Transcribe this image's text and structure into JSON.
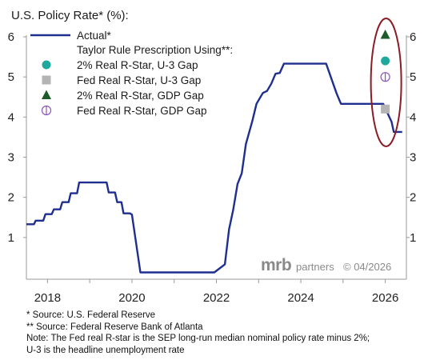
{
  "chart_data": {
    "type": "line",
    "title": "U.S. Policy Rate* (%):",
    "ylim": [
      0,
      6
    ],
    "xlim": [
      2017.5,
      2026.5
    ],
    "y_ticks": [
      "1",
      "2",
      "3",
      "4",
      "5",
      "6"
    ],
    "x_ticks": [
      "2018",
      "2020",
      "2022",
      "2024",
      "2026"
    ],
    "grid": false,
    "legend_position": "top-left",
    "series": [
      {
        "name": "Actual*",
        "color": "#1f2f8f",
        "x": [
          2017.5,
          2017.68,
          2017.72,
          2017.9,
          2017.95,
          2018.1,
          2018.15,
          2018.3,
          2018.35,
          2018.5,
          2018.55,
          2018.7,
          2018.75,
          2019.4,
          2019.45,
          2019.6,
          2019.65,
          2019.75,
          2019.8,
          2019.95,
          2020.0,
          2020.2,
          2021.95,
          2022.2,
          2022.3,
          2022.4,
          2022.5,
          2022.6,
          2022.7,
          2022.85,
          2022.95,
          2023.1,
          2023.2,
          2023.3,
          2023.4,
          2023.5,
          2023.6,
          2024.6,
          2024.75,
          2024.85,
          2024.95,
          2025.05,
          2025.95,
          2026.15,
          2026.2,
          2026.4
        ],
        "y": [
          1.33,
          1.33,
          1.42,
          1.42,
          1.58,
          1.58,
          1.7,
          1.7,
          1.88,
          1.88,
          2.1,
          2.1,
          2.37,
          2.37,
          2.12,
          2.12,
          1.88,
          1.88,
          1.6,
          1.6,
          1.57,
          0.13,
          0.13,
          0.33,
          1.2,
          1.7,
          2.33,
          2.6,
          3.33,
          3.9,
          4.33,
          4.6,
          4.65,
          4.83,
          5.08,
          5.1,
          5.33,
          5.33,
          4.88,
          4.58,
          4.33,
          4.33,
          4.33,
          3.88,
          3.63,
          3.63
        ]
      }
    ],
    "legend_header": "Taylor Rule Prescription Using**:",
    "taylor_points": [
      {
        "name": "2% Real R-Star, U-3 Gap",
        "marker": "circle",
        "color": "#1fa89c",
        "x": 2026.0,
        "y": 5.4
      },
      {
        "name": "Fed Real R-Star, U-3 Gap",
        "marker": "square",
        "color": "#b4b4b4",
        "x": 2026.0,
        "y": 4.2
      },
      {
        "name": "2% Real R-Star, GDP Gap",
        "marker": "triangle",
        "color": "#1e5a2a",
        "x": 2026.0,
        "y": 6.05
      },
      {
        "name": "Fed Real R-Star, GDP Gap",
        "marker": "circle-bar",
        "color": "#8a55b8",
        "x": 2026.0,
        "y": 5.0
      }
    ],
    "highlight_ellipse_color": "#8b1c24"
  },
  "brand": {
    "mrb": "mrb",
    "partners": "partners",
    "date": "© 04/2026"
  },
  "footnotes": [
    "*   Source: U.S. Federal Reserve",
    "**  Source: Federal Reserve Bank of Atlanta",
    "Note: The Fed real R-star is the SEP long-run median nominal policy rate minus 2%;",
    "U-3 is the headline unemployment rate"
  ]
}
